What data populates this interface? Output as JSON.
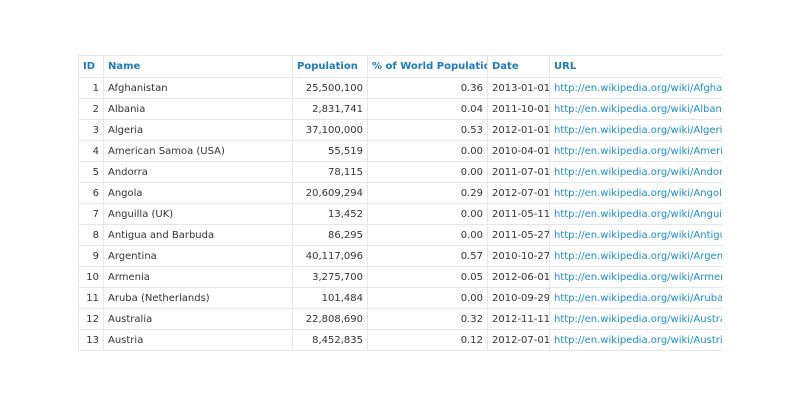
{
  "table": {
    "header": [
      "ID",
      "Name",
      "Population",
      "% of World Population",
      "Date",
      "URL"
    ],
    "rows": [
      [
        "1",
        "Afghanistan",
        "25,500,100",
        "0.36",
        "2013-01-01",
        "http://en.wikipedia.org/wiki/Afghanistan"
      ],
      [
        "2",
        "Albania",
        "2,831,741",
        "0.04",
        "2011-10-01",
        "http://en.wikipedia.org/wiki/Albania"
      ],
      [
        "3",
        "Algeria",
        "37,100,000",
        "0.53",
        "2012-01-01",
        "http://en.wikipedia.org/wiki/Algeria"
      ],
      [
        "4",
        "American Samoa (USA)",
        "55,519",
        "0.00",
        "2010-04-01",
        "http://en.wikipedia.org/wiki/American_Samoa"
      ],
      [
        "5",
        "Andorra",
        "78,115",
        "0.00",
        "2011-07-01",
        "http://en.wikipedia.org/wiki/Andorra"
      ],
      [
        "6",
        "Angola",
        "20,609,294",
        "0.29",
        "2012-07-01",
        "http://en.wikipedia.org/wiki/Angola"
      ],
      [
        "7",
        "Anguilla (UK)",
        "13,452",
        "0.00",
        "2011-05-11",
        "http://en.wikipedia.org/wiki/Anguilla"
      ],
      [
        "8",
        "Antigua and Barbuda",
        "86,295",
        "0.00",
        "2011-05-27",
        "http://en.wikipedia.org/wiki/Antigua_and_Barbuda"
      ],
      [
        "9",
        "Argentina",
        "40,117,096",
        "0.57",
        "2010-10-27",
        "http://en.wikipedia.org/wiki/Argentina"
      ],
      [
        "10",
        "Armenia",
        "3,275,700",
        "0.05",
        "2012-06-01",
        "http://en.wikipedia.org/wiki/Armenia"
      ],
      [
        "11",
        "Aruba (Netherlands)",
        "101,484",
        "0.00",
        "2010-09-29",
        "http://en.wikipedia.org/wiki/Aruba"
      ],
      [
        "12",
        "Australia",
        "22,808,690",
        "0.32",
        "2012-11-11",
        "http://en.wikipedia.org/wiki/Australia"
      ],
      [
        "13",
        "Austria",
        "8,452,835",
        "0.12",
        "2012-07-01",
        "http://en.wikipedia.org/wiki/Austria"
      ]
    ]
  }
}
